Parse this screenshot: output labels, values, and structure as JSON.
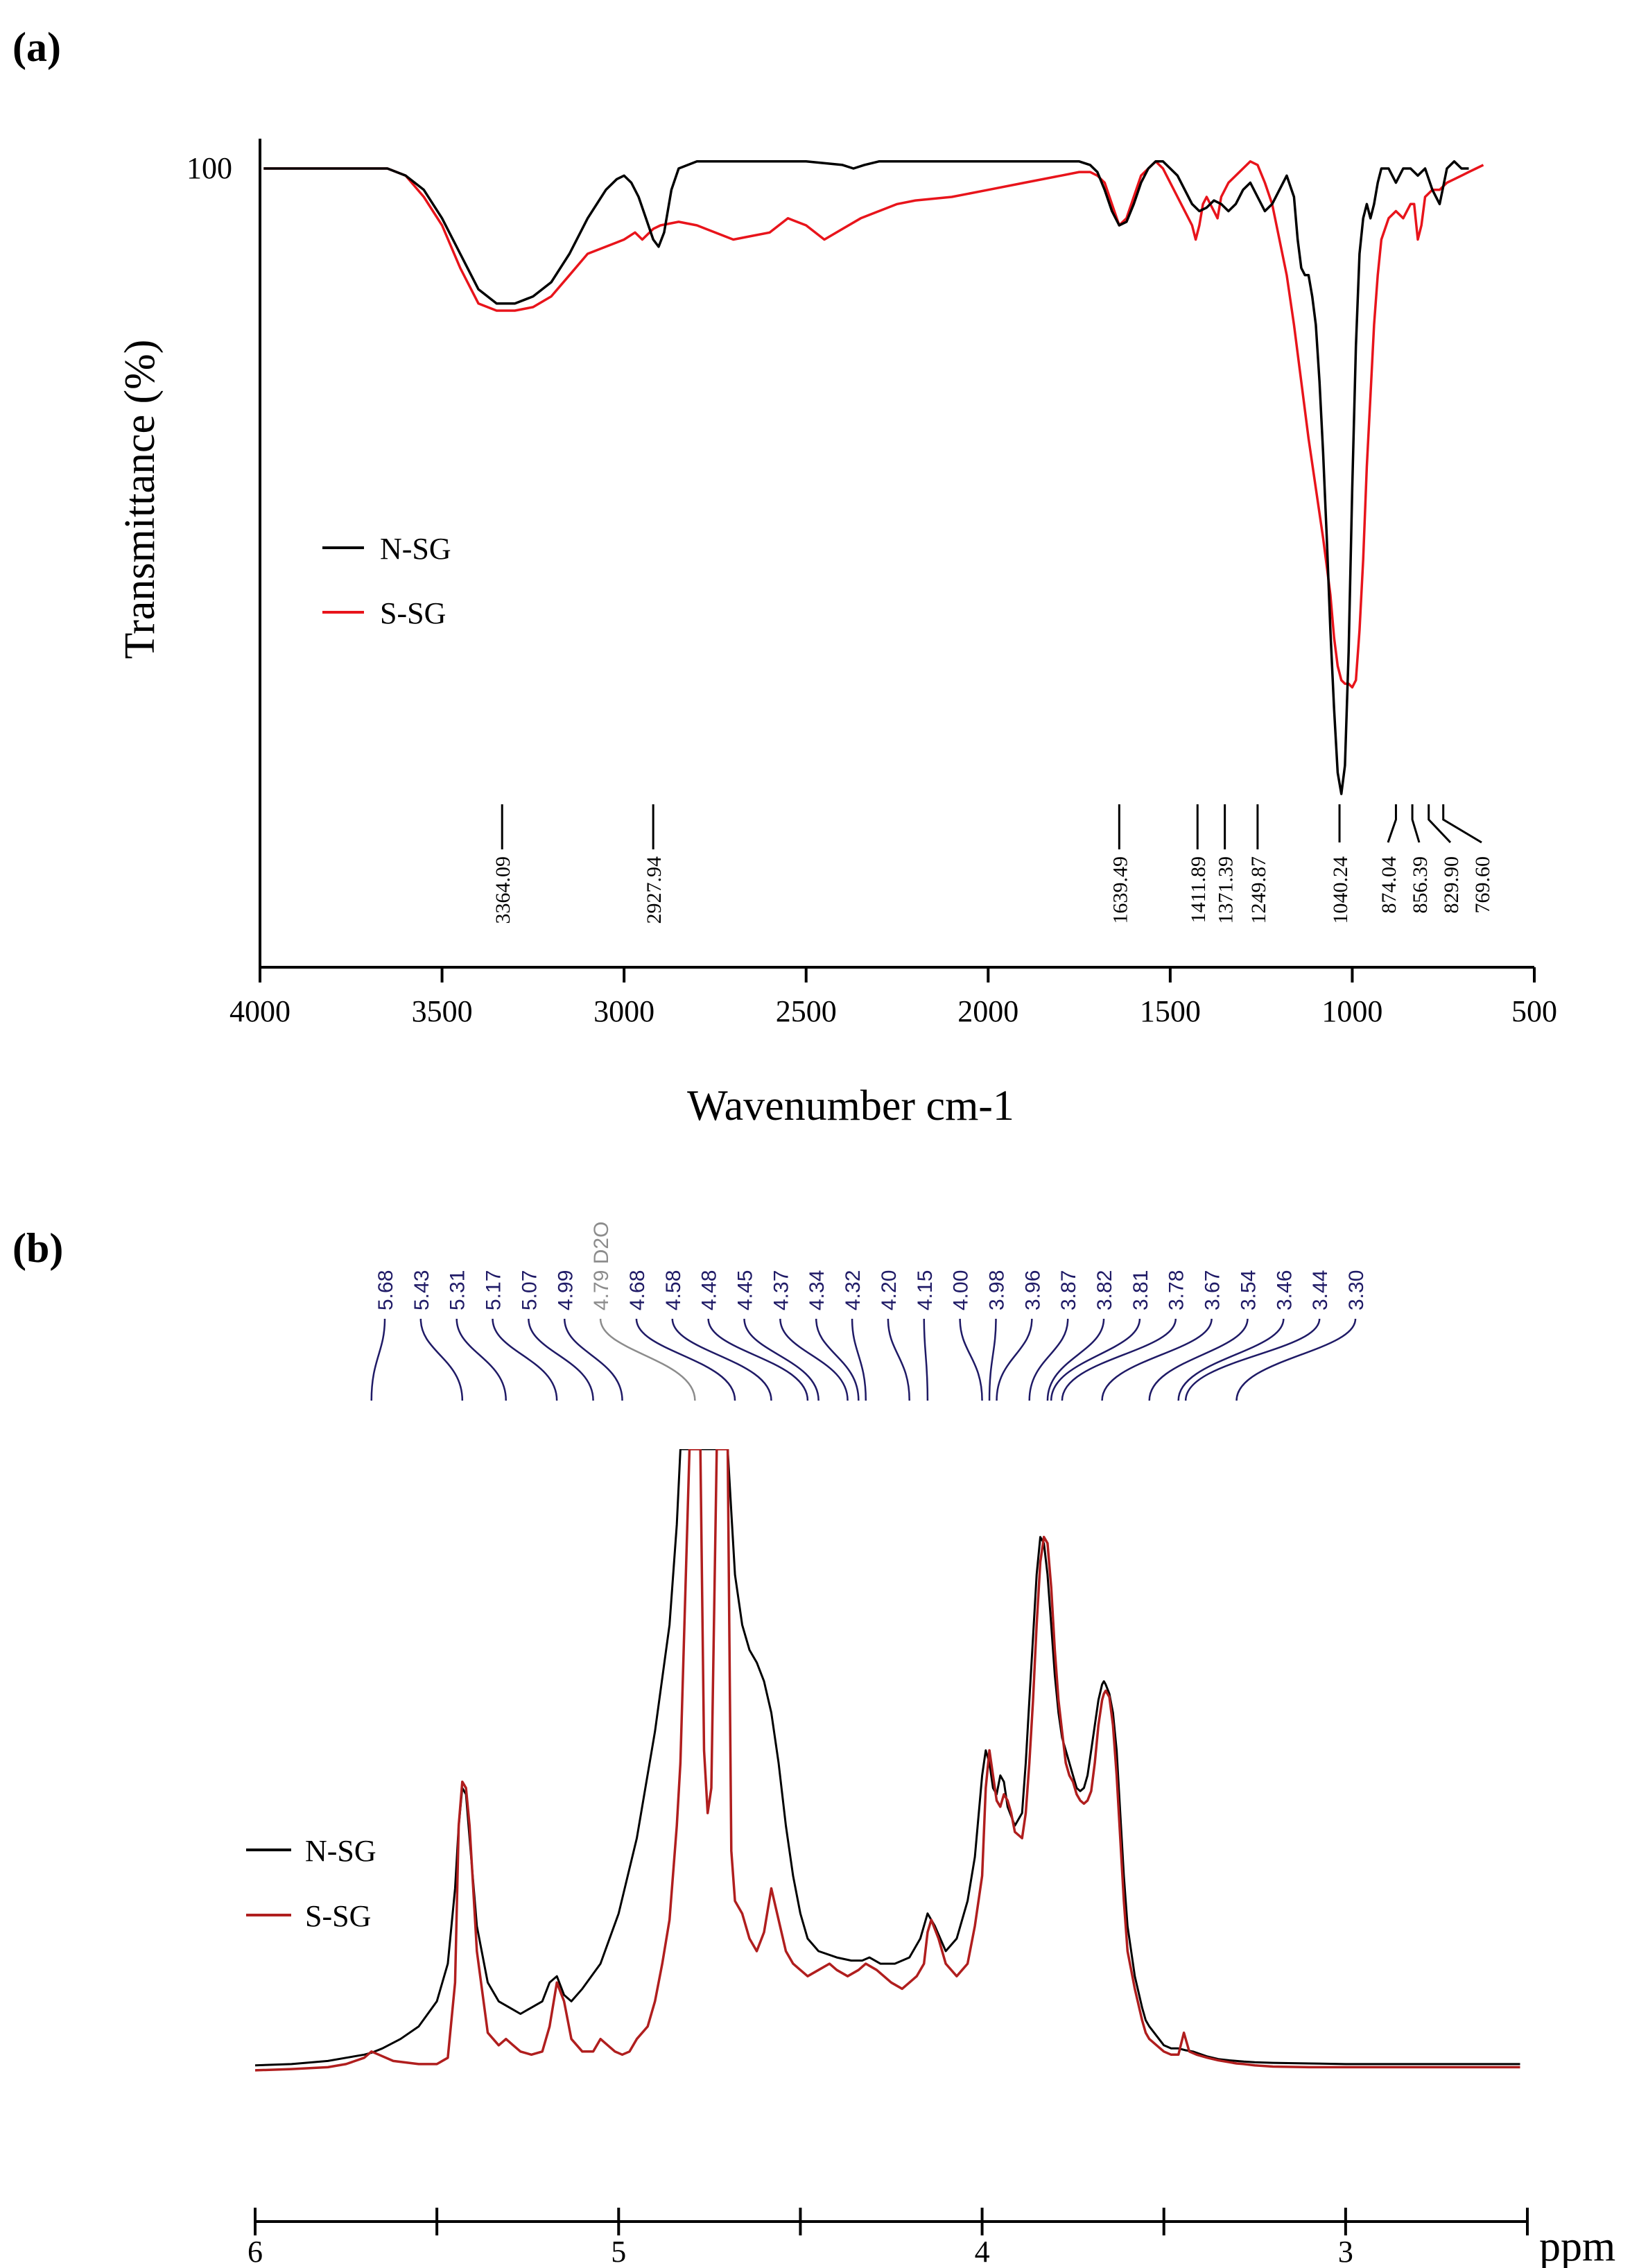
{
  "colors": {
    "n_sg": "#000000",
    "s_sg": "#e8141b",
    "s_sg_nmr": "#b01e1e",
    "annotation_nmr": "#1f1a66",
    "solvent": "#8c8c8c"
  },
  "chart_data": [
    {
      "panel": "(a)",
      "type": "line",
      "title": "",
      "xlabel": "Wavenumber cm-1",
      "ylabel": "Transmittance (%)",
      "xlim": [
        4000,
        500
      ],
      "ylim": [
        0,
        102
      ],
      "xticks": [
        "4000",
        "3500",
        "3000",
        "2500",
        "2000",
        "1500",
        "1000",
        "500"
      ],
      "yticks": [
        "100"
      ],
      "legend": {
        "location": "middle-left",
        "entries": [
          "N-SG",
          "S-SG"
        ]
      },
      "annotations": [
        "3364.09",
        "2927.94",
        "1639.49",
        "1411.89",
        "1371.39",
        "1249.87",
        "1040.24",
        "874.04",
        "856.39",
        "829.90",
        "769.60"
      ],
      "annotation_positions": [
        3335,
        2920,
        1640,
        1425,
        1350,
        1260,
        1035,
        880,
        835,
        790,
        750
      ],
      "series": [
        {
          "name": "N-SG",
          "x": [
            3990,
            3900,
            3800,
            3700,
            3650,
            3600,
            3550,
            3500,
            3450,
            3400,
            3350,
            3300,
            3250,
            3200,
            3150,
            3100,
            3050,
            3020,
            3000,
            2980,
            2960,
            2940,
            2920,
            2905,
            2890,
            2870,
            2850,
            2800,
            2700,
            2600,
            2500,
            2400,
            2370,
            2340,
            2300,
            2200,
            2100,
            2000,
            1900,
            1800,
            1750,
            1720,
            1700,
            1680,
            1660,
            1640,
            1620,
            1600,
            1580,
            1560,
            1540,
            1520,
            1500,
            1480,
            1460,
            1440,
            1420,
            1400,
            1380,
            1360,
            1340,
            1320,
            1300,
            1280,
            1260,
            1240,
            1220,
            1200,
            1180,
            1160,
            1150,
            1140,
            1130,
            1120,
            1110,
            1100,
            1090,
            1080,
            1070,
            1060,
            1050,
            1040,
            1030,
            1020,
            1010,
            1000,
            990,
            980,
            970,
            960,
            950,
            940,
            930,
            920,
            900,
            880,
            860,
            840,
            820,
            800,
            780,
            760,
            740,
            720,
            700,
            680
          ],
          "values": [
            100,
            100,
            100,
            100,
            100,
            99,
            97,
            93,
            88,
            83,
            81,
            81,
            82,
            84,
            88,
            93,
            97,
            98.5,
            99,
            98,
            96,
            93,
            90,
            89,
            91,
            97,
            100,
            101,
            101,
            101,
            101,
            100.5,
            100,
            100.5,
            101,
            101,
            101,
            101,
            101,
            101,
            101,
            100.5,
            99.5,
            97,
            94,
            92,
            92.5,
            95,
            98,
            100,
            101,
            101,
            100,
            99,
            97,
            95,
            94,
            94.5,
            95.5,
            95,
            94,
            95,
            97,
            98,
            96,
            94,
            95,
            97,
            99,
            96,
            90,
            86,
            85,
            85,
            82,
            78,
            70,
            60,
            48,
            35,
            24,
            15,
            12,
            16,
            32,
            55,
            75,
            88,
            93,
            95,
            93,
            95,
            98,
            100,
            100,
            98,
            100,
            100,
            99,
            100,
            97,
            95,
            100,
            101,
            100,
            100
          ]
        },
        {
          "name": "S-SG",
          "x": [
            3990,
            3900,
            3800,
            3700,
            3650,
            3600,
            3550,
            3500,
            3450,
            3400,
            3350,
            3300,
            3250,
            3200,
            3150,
            3100,
            3050,
            3000,
            2970,
            2950,
            2920,
            2900,
            2850,
            2800,
            2750,
            2700,
            2650,
            2600,
            2550,
            2500,
            2450,
            2400,
            2350,
            2300,
            2250,
            2200,
            2100,
            2000,
            1900,
            1800,
            1750,
            1720,
            1700,
            1680,
            1660,
            1640,
            1620,
            1600,
            1580,
            1560,
            1540,
            1520,
            1500,
            1480,
            1460,
            1440,
            1430,
            1420,
            1410,
            1400,
            1380,
            1370,
            1360,
            1340,
            1320,
            1300,
            1280,
            1260,
            1240,
            1220,
            1200,
            1180,
            1160,
            1140,
            1120,
            1100,
            1080,
            1070,
            1060,
            1050,
            1040,
            1030,
            1020,
            1010,
            1000,
            990,
            980,
            970,
            960,
            950,
            940,
            930,
            920,
            900,
            880,
            860,
            840,
            830,
            820,
            810,
            800,
            780,
            760,
            740,
            720,
            700,
            680,
            660,
            640
          ],
          "values": [
            100,
            100,
            100,
            100,
            100,
            99,
            96,
            92,
            86,
            81,
            80,
            80,
            80.5,
            82,
            85,
            88,
            89,
            90,
            91,
            90,
            91.5,
            92,
            92.5,
            92,
            91,
            90,
            90.5,
            91,
            93,
            92,
            90,
            91.5,
            93,
            94,
            95,
            95.5,
            96,
            97,
            98,
            99,
            99.5,
            99.5,
            99,
            98,
            95,
            92,
            93,
            96,
            99,
            100,
            101,
            100,
            98,
            96,
            94,
            92,
            90,
            92,
            95,
            96,
            94,
            93,
            96,
            98,
            99,
            100,
            101,
            100.5,
            98,
            95,
            90,
            85,
            78,
            70,
            62,
            55,
            48,
            44,
            40,
            34,
            30,
            28,
            27.5,
            27.5,
            27,
            28,
            35,
            45,
            58,
            68,
            78,
            85,
            90,
            93,
            94,
            93,
            95,
            95,
            90,
            92,
            96,
            97,
            97,
            98,
            98.5,
            99,
            99.5,
            100,
            100.5
          ]
        }
      ]
    },
    {
      "panel": "(b)",
      "type": "line",
      "title": "",
      "xlabel": "ppm",
      "ylabel": "",
      "xlim": [
        6.0,
        2.5
      ],
      "ylim": [
        0,
        102
      ],
      "xticks": [
        "6",
        "5",
        "4",
        "3"
      ],
      "legend": {
        "location": "middle-left",
        "entries": [
          "N-SG",
          "S-SG"
        ]
      },
      "peak_labels": [
        "5.68",
        "5.43",
        "5.31",
        "5.17",
        "5.07",
        "4.99",
        "4.79 D2O",
        "4.68",
        "4.58",
        "4.48",
        "4.45",
        "4.37",
        "4.34",
        "4.32",
        "4.20",
        "4.15",
        "4.00",
        "3.98",
        "3.96",
        "3.87",
        "3.82",
        "3.81",
        "3.78",
        "3.67",
        "3.54",
        "3.46",
        "3.44",
        "3.30"
      ],
      "series": [
        {
          "name": "N-SG",
          "x": [
            6.0,
            5.9,
            5.8,
            5.75,
            5.7,
            5.68,
            5.65,
            5.6,
            5.55,
            5.5,
            5.47,
            5.45,
            5.44,
            5.43,
            5.42,
            5.41,
            5.39,
            5.36,
            5.33,
            5.3,
            5.27,
            5.24,
            5.21,
            5.19,
            5.17,
            5.15,
            5.13,
            5.1,
            5.05,
            5.0,
            4.95,
            4.9,
            4.86,
            4.84,
            4.83,
            4.7,
            4.69,
            4.68,
            4.66,
            4.64,
            4.62,
            4.6,
            4.58,
            4.56,
            4.54,
            4.52,
            4.5,
            4.48,
            4.45,
            4.4,
            4.36,
            4.33,
            4.31,
            4.28,
            4.24,
            4.2,
            4.17,
            4.15,
            4.13,
            4.1,
            4.07,
            4.04,
            4.02,
            4.0,
            3.99,
            3.98,
            3.97,
            3.96,
            3.95,
            3.94,
            3.93,
            3.91,
            3.89,
            3.88,
            3.87,
            3.86,
            3.85,
            3.84,
            3.83,
            3.82,
            3.81,
            3.8,
            3.79,
            3.78,
            3.77,
            3.76,
            3.75,
            3.74,
            3.73,
            3.72,
            3.71,
            3.7,
            3.69,
            3.68,
            3.67,
            3.665,
            3.66,
            3.65,
            3.64,
            3.63,
            3.62,
            3.61,
            3.6,
            3.58,
            3.56,
            3.55,
            3.54,
            3.52,
            3.5,
            3.48,
            3.46,
            3.44,
            3.42,
            3.4,
            3.38,
            3.35,
            3.32,
            3.3,
            3.28,
            3.25,
            3.2,
            3.1,
            3.0,
            2.9,
            2.8,
            2.7,
            2.6,
            2.52
          ],
          "values": [
            1.8,
            2.0,
            2.5,
            3.0,
            3.5,
            3.8,
            4.5,
            6,
            8,
            12,
            18,
            30,
            40,
            46,
            45,
            38,
            24,
            15,
            12,
            11,
            10,
            11,
            12,
            15,
            16,
            13,
            12,
            14,
            18,
            26,
            38,
            55,
            72,
            88,
            100,
            100,
            90,
            80,
            72,
            68,
            66,
            63,
            58,
            50,
            40,
            32,
            26,
            22,
            20,
            19,
            18.5,
            18.5,
            19,
            18,
            18,
            19,
            22,
            26,
            24,
            20,
            22,
            28,
            35,
            48,
            52,
            50,
            46,
            45,
            48,
            47,
            43,
            40,
            42,
            50,
            60,
            70,
            80,
            86,
            85,
            80,
            72,
            64,
            58,
            54,
            52,
            50,
            48,
            46,
            45.5,
            46,
            48,
            52,
            56,
            60,
            62.5,
            63,
            62.5,
            61,
            58,
            52,
            42,
            32,
            24,
            16,
            11,
            9,
            8,
            6.5,
            5,
            4.5,
            4.5,
            4.2,
            4,
            3.6,
            3.2,
            2.8,
            2.6,
            2.5,
            2.4,
            2.3,
            2.2,
            2.1,
            2.0,
            2.0,
            2.0,
            2.0,
            2.0,
            2.0
          ]
        },
        {
          "name": "S-SG",
          "x": [
            6.0,
            5.9,
            5.8,
            5.75,
            5.7,
            5.68,
            5.66,
            5.62,
            5.55,
            5.5,
            5.47,
            5.45,
            5.44,
            5.43,
            5.42,
            5.41,
            5.39,
            5.36,
            5.33,
            5.31,
            5.29,
            5.27,
            5.24,
            5.21,
            5.19,
            5.17,
            5.15,
            5.13,
            5.1,
            5.07,
            5.05,
            5.03,
            5.01,
            4.99,
            4.97,
            4.95,
            4.92,
            4.9,
            4.88,
            4.86,
            4.84,
            4.83,
            4.805,
            4.79,
            4.775,
            4.765,
            4.755,
            4.745,
            4.73,
            4.72,
            4.7,
            4.69,
            4.68,
            4.66,
            4.64,
            4.62,
            4.6,
            4.58,
            4.56,
            4.54,
            4.52,
            4.5,
            4.48,
            4.45,
            4.42,
            4.4,
            4.37,
            4.34,
            4.32,
            4.29,
            4.25,
            4.22,
            4.2,
            4.18,
            4.16,
            4.15,
            4.14,
            4.12,
            4.1,
            4.07,
            4.04,
            4.02,
            4.0,
            3.99,
            3.98,
            3.97,
            3.96,
            3.95,
            3.94,
            3.93,
            3.92,
            3.91,
            3.89,
            3.88,
            3.87,
            3.86,
            3.85,
            3.84,
            3.83,
            3.82,
            3.81,
            3.8,
            3.79,
            3.78,
            3.77,
            3.76,
            3.75,
            3.74,
            3.73,
            3.72,
            3.71,
            3.7,
            3.69,
            3.68,
            3.67,
            3.665,
            3.66,
            3.65,
            3.64,
            3.63,
            3.62,
            3.61,
            3.6,
            3.58,
            3.56,
            3.55,
            3.54,
            3.52,
            3.5,
            3.48,
            3.46,
            3.445,
            3.43,
            3.41,
            3.38,
            3.35,
            3.32,
            3.3,
            3.28,
            3.25,
            3.2,
            3.1,
            3.0,
            2.9,
            2.8,
            2.7,
            2.6,
            2.52
          ],
          "values": [
            1.0,
            1.2,
            1.5,
            2.0,
            3.0,
            4.0,
            3.5,
            2.5,
            2.0,
            2.0,
            3.0,
            15,
            40,
            47,
            46,
            40,
            20,
            7,
            5,
            6,
            5,
            4,
            3.5,
            4,
            8,
            15,
            12,
            6,
            4,
            4,
            6,
            5,
            4,
            3.5,
            4,
            6,
            8,
            12,
            18,
            25,
            40,
            50,
            100,
            100,
            100,
            52,
            42,
            46,
            100,
            100,
            100,
            36,
            28,
            26,
            22,
            20,
            23,
            30,
            25,
            20,
            18,
            17,
            16,
            17,
            18,
            17,
            16,
            17,
            18,
            17,
            15,
            14,
            15,
            16,
            18,
            23,
            25,
            22,
            18,
            16,
            18,
            24,
            32,
            46,
            52,
            48,
            44,
            43,
            45,
            44,
            42,
            39,
            38,
            42,
            50,
            60,
            72,
            82,
            86,
            85,
            78,
            68,
            60,
            55,
            50,
            48,
            47,
            45,
            44,
            43.5,
            44,
            45.5,
            50,
            56,
            60,
            61,
            61.5,
            60.5,
            56,
            48,
            38,
            28,
            20,
            14,
            9,
            7,
            6,
            5,
            4,
            3.5,
            3.5,
            7,
            4,
            3.5,
            3,
            2.6,
            2.3,
            2.1,
            2.0,
            1.8,
            1.6,
            1.5,
            1.5,
            1.5,
            1.5,
            1.5,
            1.5,
            1.5
          ]
        }
      ]
    }
  ]
}
